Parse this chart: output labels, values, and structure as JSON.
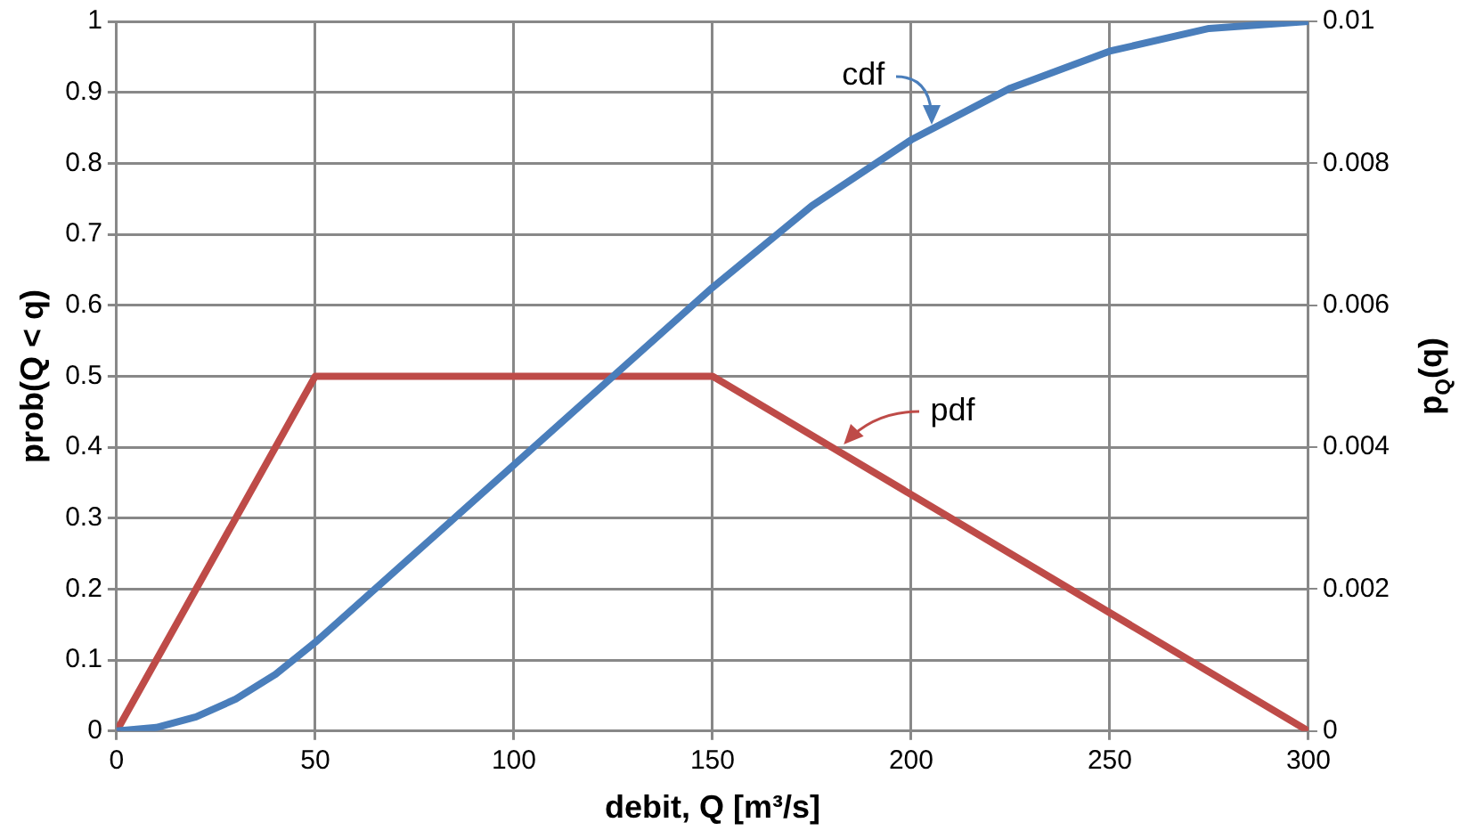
{
  "chart_data": {
    "type": "line",
    "xlabel": "debit, Q [m³/s]",
    "ylabel": "prob(Q < q)",
    "y2label": "p$_{Q}$(q)",
    "series": [
      {
        "name": "cdf",
        "color": "#4a7ebb",
        "x": [
          0,
          10,
          20,
          30,
          40,
          50,
          100,
          150,
          175,
          200,
          225,
          250,
          275,
          300
        ],
        "values": [
          0,
          0.005,
          0.02,
          0.045,
          0.08,
          0.125,
          0.375,
          0.625,
          0.74,
          0.833,
          0.906,
          0.958,
          0.99,
          1
        ]
      },
      {
        "name": "pdf",
        "color": "#be4b48",
        "axis": "y2",
        "x": [
          0,
          50,
          150,
          300
        ],
        "values": [
          0,
          0.005,
          0.005,
          0
        ]
      }
    ],
    "xlim": [
      0,
      300
    ],
    "xticks": [
      0,
      50,
      100,
      150,
      200,
      250,
      300
    ],
    "ylim": [
      0,
      1
    ],
    "yticks": [
      0,
      0.1,
      0.2,
      0.3,
      0.4,
      0.5,
      0.6,
      0.7,
      0.8,
      0.9,
      1
    ],
    "y2lim": [
      0,
      0.01
    ],
    "y2ticks": [
      0,
      0.002,
      0.004,
      0.006,
      0.008,
      0.01
    ],
    "grid": true,
    "marker": "none",
    "line_style": "solid"
  }
}
